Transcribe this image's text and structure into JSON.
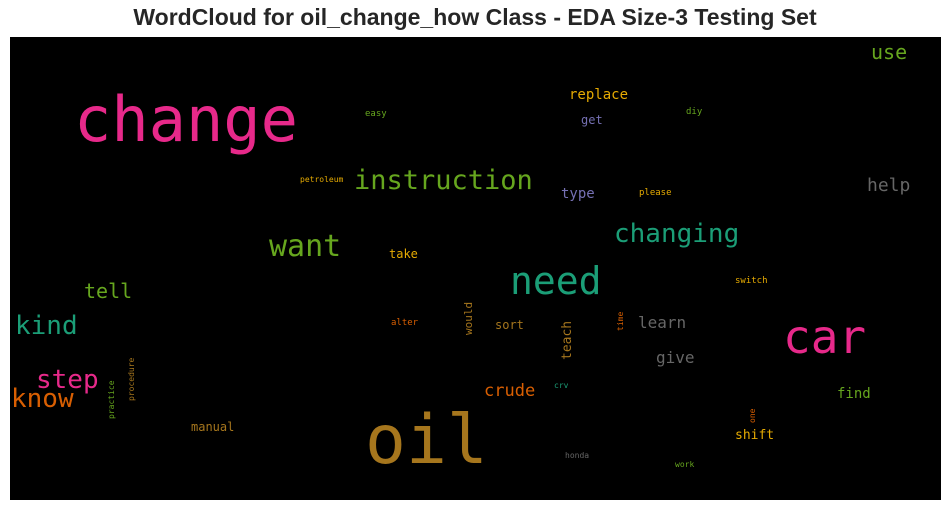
{
  "title": "WordCloud for oil_change_how Class - EDA Size-3 Testing Set",
  "colors": {
    "magenta": "#e7298a",
    "olive": "#a6761d",
    "teal": "#1b9e77",
    "green": "#66a61e",
    "grey": "#666666",
    "orange": "#d95f02",
    "gold": "#e6ab02",
    "purple": "#7570b3"
  },
  "words": [
    {
      "text": "change",
      "color": "#e7298a"
    },
    {
      "text": "oil",
      "color": "#a6761d"
    },
    {
      "text": "car",
      "color": "#e7298a"
    },
    {
      "text": "need",
      "color": "#1b9e77"
    },
    {
      "text": "instruction",
      "color": "#66a61e"
    },
    {
      "text": "want",
      "color": "#66a61e"
    },
    {
      "text": "changing",
      "color": "#1b9e77"
    },
    {
      "text": "kind",
      "color": "#1b9e77"
    },
    {
      "text": "step",
      "color": "#e7298a"
    },
    {
      "text": "know",
      "color": "#d95f02"
    },
    {
      "text": "tell",
      "color": "#66a61e"
    },
    {
      "text": "use",
      "color": "#66a61e"
    },
    {
      "text": "help",
      "color": "#666666"
    },
    {
      "text": "learn",
      "color": "#666666"
    },
    {
      "text": "give",
      "color": "#666666"
    },
    {
      "text": "crude",
      "color": "#d95f02"
    },
    {
      "text": "replace",
      "color": "#e6ab02"
    },
    {
      "text": "find",
      "color": "#66a61e"
    },
    {
      "text": "shift",
      "color": "#e6ab02"
    },
    {
      "text": "type",
      "color": "#7570b3"
    },
    {
      "text": "teach",
      "color": "#a6761d"
    },
    {
      "text": "sort",
      "color": "#a6761d"
    },
    {
      "text": "take",
      "color": "#e6ab02"
    },
    {
      "text": "get",
      "color": "#7570b3"
    },
    {
      "text": "manual",
      "color": "#a6761d"
    },
    {
      "text": "would",
      "color": "#a6761d"
    },
    {
      "text": "easy",
      "color": "#66a61e"
    },
    {
      "text": "diy",
      "color": "#66a61e"
    },
    {
      "text": "please",
      "color": "#e6ab02"
    },
    {
      "text": "petroleum",
      "color": "#e6ab02"
    },
    {
      "text": "switch",
      "color": "#e6ab02"
    },
    {
      "text": "alter",
      "color": "#d95f02"
    },
    {
      "text": "time",
      "color": "#d95f02"
    },
    {
      "text": "practice",
      "color": "#66a61e"
    },
    {
      "text": "procedure",
      "color": "#a6761d"
    },
    {
      "text": "crv",
      "color": "#1b9e77"
    },
    {
      "text": "one",
      "color": "#d95f02"
    },
    {
      "text": "honda",
      "color": "#666666"
    },
    {
      "text": "work",
      "color": "#66a61e"
    }
  ]
}
